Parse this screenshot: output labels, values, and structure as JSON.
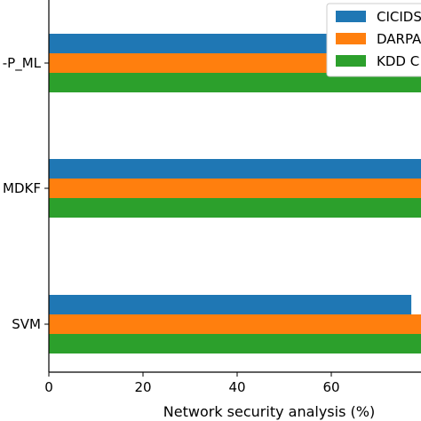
{
  "chart_data": {
    "type": "bar",
    "orientation": "horizontal",
    "categories": [
      "SVM",
      "MDKF",
      "P_ML"
    ],
    "category_labels_shown": [
      "SVM",
      "MDKF",
      "-P_ML"
    ],
    "series": [
      {
        "name": "CICIDS",
        "color": "#1f77b4",
        "values": [
          77,
          82,
          82
        ]
      },
      {
        "name": "DARPA",
        "color": "#ff7f0e",
        "values": [
          86,
          86,
          86
        ]
      },
      {
        "name": "KDD C",
        "color": "#2ca02c",
        "values": [
          88,
          88,
          88
        ]
      }
    ],
    "xlabel": "Network security analysis (%)",
    "ylabel": "",
    "xlim": [
      0,
      78
    ],
    "x_ticks": [
      0,
      20,
      40,
      60
    ],
    "grid": false,
    "legend_position": "top-right"
  }
}
